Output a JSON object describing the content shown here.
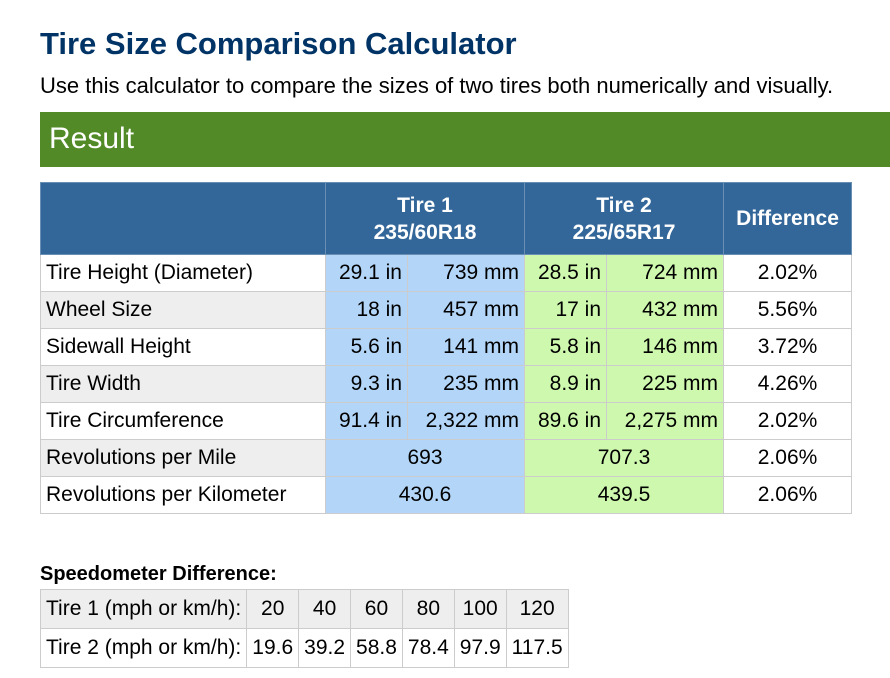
{
  "header": {
    "title": "Tire Size Comparison Calculator",
    "subtitle": "Use this calculator to compare the sizes of two tires both numerically and visually."
  },
  "result": {
    "heading": "Result",
    "columns": {
      "tire1_label": "Tire 1",
      "tire1_size": "235/60R18",
      "tire2_label": "Tire 2",
      "tire2_size": "225/65R17",
      "difference": "Difference"
    },
    "rows": [
      {
        "label": "Tire Height (Diameter)",
        "t1_in": "29.1 in",
        "t1_mm": "739 mm",
        "t2_in": "28.5 in",
        "t2_mm": "724 mm",
        "diff": "2.02%"
      },
      {
        "label": "Wheel Size",
        "t1_in": "18 in",
        "t1_mm": "457 mm",
        "t2_in": "17 in",
        "t2_mm": "432 mm",
        "diff": "5.56%"
      },
      {
        "label": "Sidewall Height",
        "t1_in": "5.6 in",
        "t1_mm": "141 mm",
        "t2_in": "5.8 in",
        "t2_mm": "146 mm",
        "diff": "3.72%"
      },
      {
        "label": "Tire Width",
        "t1_in": "9.3 in",
        "t1_mm": "235 mm",
        "t2_in": "8.9 in",
        "t2_mm": "225 mm",
        "diff": "4.26%"
      },
      {
        "label": "Tire Circumference",
        "t1_in": "91.4 in",
        "t1_mm": "2,322 mm",
        "t2_in": "89.6 in",
        "t2_mm": "2,275 mm",
        "diff": "2.02%"
      }
    ],
    "rev_rows": [
      {
        "label": "Revolutions per Mile",
        "t1": "693",
        "t2": "707.3",
        "diff": "2.06%"
      },
      {
        "label": "Revolutions per Kilometer",
        "t1": "430.6",
        "t2": "439.5",
        "diff": "2.06%"
      }
    ]
  },
  "speedometer": {
    "title": "Speedometer Difference:",
    "tire1_label": "Tire 1 (mph or km/h):",
    "tire2_label": "Tire 2 (mph or km/h):",
    "tire1_values": [
      "20",
      "40",
      "60",
      "80",
      "100",
      "120"
    ],
    "tire2_values": [
      "19.6",
      "39.2",
      "58.8",
      "78.4",
      "97.9",
      "117.5"
    ]
  }
}
